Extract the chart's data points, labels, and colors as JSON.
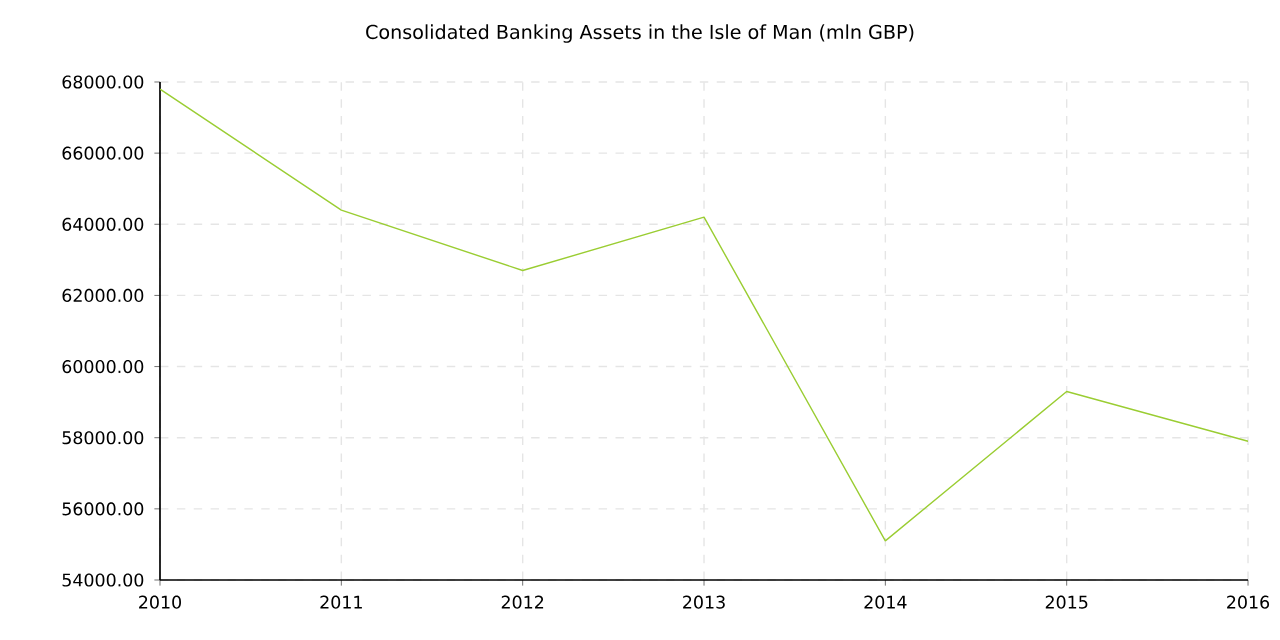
{
  "chart_data": {
    "type": "line",
    "title": "Consolidated Banking Assets in the Isle of Man (mln GBP)",
    "x": [
      2010,
      2011,
      2012,
      2013,
      2014,
      2015,
      2016
    ],
    "series": [
      {
        "color": "#9acd32",
        "values": [
          67800,
          64400,
          62700,
          64200,
          55100,
          59300,
          57900
        ]
      }
    ],
    "xlim": [
      2010,
      2016
    ],
    "xticks": [
      2010,
      2011,
      2012,
      2013,
      2014,
      2015,
      2016
    ],
    "ylim": [
      54000,
      68000
    ],
    "yticks": [
      {
        "value": 54000,
        "label": "54000.00"
      },
      {
        "value": 56000,
        "label": "56000.00"
      },
      {
        "value": 58000,
        "label": "58000.00"
      },
      {
        "value": 60000,
        "label": "60000.00"
      },
      {
        "value": 62000,
        "label": "62000.00"
      },
      {
        "value": 64000,
        "label": "64000.00"
      },
      {
        "value": 66000,
        "label": "66000.00"
      },
      {
        "value": 68000,
        "label": "68000.00"
      }
    ],
    "grid": true,
    "marker": "none",
    "line_style": "solid"
  }
}
